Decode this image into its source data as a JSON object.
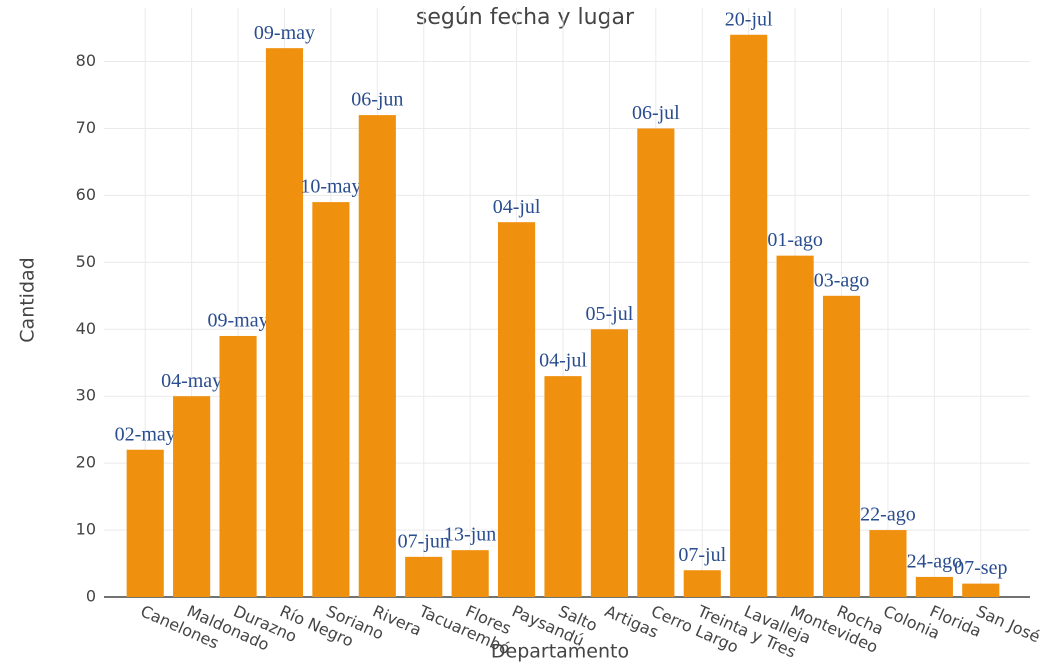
{
  "chart_data": {
    "type": "bar",
    "title": "según fecha y lugar",
    "x_label": "Departamento",
    "y_label": "Cantidad",
    "categories": [
      "Canelones",
      "Maldonado",
      "Durazno",
      "Río Negro",
      "Soriano",
      "Rivera",
      "Tacuarembó",
      "Flores",
      "Paysandú",
      "Salto",
      "Artigas",
      "Cerro Largo",
      "Treinta y Tres",
      "Lavalleja",
      "Montevideo",
      "Rocha",
      "Colonia",
      "Florida",
      "San José"
    ],
    "values": [
      22,
      30,
      39,
      82,
      59,
      72,
      6,
      7,
      56,
      33,
      40,
      70,
      4,
      84,
      51,
      45,
      10,
      3,
      2
    ],
    "annotations": [
      "02-may",
      "04-may",
      "09-may",
      "09-may",
      "10-may",
      "06-jun",
      "07-jun",
      "13-jun",
      "04-jul",
      "04-jul",
      "05-jul",
      "06-jul",
      "07-jul",
      "20-jul",
      "01-ago",
      "03-ago",
      "22-ago",
      "24-ago",
      "07-sep"
    ],
    "color": "#f0900f",
    "ylim": [
      0,
      88
    ],
    "yticks": [
      0,
      10,
      20,
      30,
      40,
      50,
      60,
      70,
      80
    ],
    "grid": true
  }
}
